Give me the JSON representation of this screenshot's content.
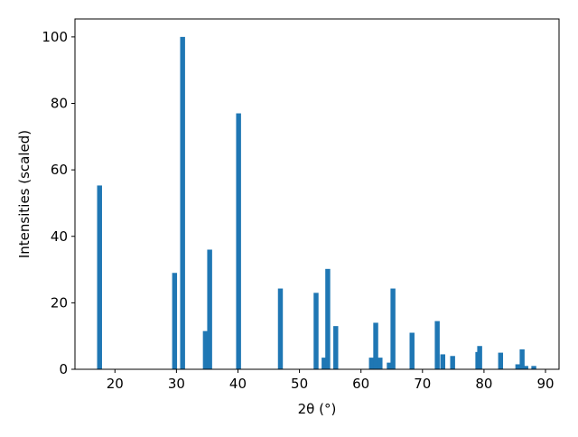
{
  "chart_data": {
    "type": "bar",
    "xlabel": "2θ (°)",
    "ylabel": "Intensities (scaled)",
    "color": "#1f77b4",
    "x": [
      17.5,
      29.7,
      31.0,
      34.7,
      35.4,
      40.1,
      46.9,
      52.7,
      54.0,
      54.6,
      55.9,
      61.7,
      62.4,
      63.1,
      64.6,
      65.2,
      68.3,
      72.4,
      73.3,
      74.9,
      79.0,
      79.3,
      82.7,
      85.5,
      86.2,
      86.8,
      88.1
    ],
    "values": [
      55.3,
      29,
      100,
      11.5,
      36,
      77,
      24.3,
      23,
      3.5,
      30.2,
      13,
      3.5,
      14,
      3.5,
      2,
      24.3,
      11,
      14.5,
      4.5,
      4,
      5.2,
      7,
      5,
      1.5,
      6,
      1,
      1
    ],
    "xlim": [
      13.5,
      92.2
    ],
    "ylim": [
      0,
      105.4
    ],
    "xticks": [
      20,
      30,
      40,
      50,
      60,
      70,
      80,
      90
    ],
    "yticks": [
      0,
      20,
      40,
      60,
      80,
      100
    ]
  }
}
